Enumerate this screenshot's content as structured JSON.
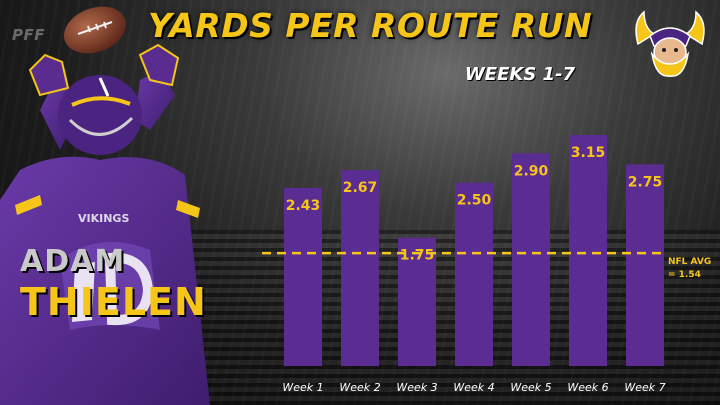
{
  "branding": {
    "pff": "PFF"
  },
  "title": "YARDS PER ROUTE RUN",
  "subtitle": "WEEKS 1-7",
  "player": {
    "first_name": "ADAM",
    "last_name": "THIELEN",
    "jersey_text": "VIKINGS"
  },
  "avg": {
    "line1": "NFL AVG",
    "line2": "= 1.54",
    "value": 1.54
  },
  "colors": {
    "bar": "#5b2c91",
    "accent": "#f5c518",
    "label": "#f5c518",
    "tick": "#ffffff"
  },
  "chart_data": {
    "type": "bar",
    "title": "YARDS PER ROUTE RUN",
    "subtitle": "WEEKS 1-7",
    "categories": [
      "Week 1",
      "Week 2",
      "Week 3",
      "Week 4",
      "Week 5",
      "Week 6",
      "Week 7"
    ],
    "values": [
      2.43,
      2.67,
      1.75,
      2.5,
      2.9,
      3.15,
      2.75
    ],
    "value_labels": [
      "2.43",
      "2.67",
      "1.75",
      "2.50",
      "2.90",
      "3.15",
      "2.75"
    ],
    "reference_line": {
      "label": "NFL AVG = 1.54",
      "value": 1.54
    },
    "ylim": [
      0,
      3.3
    ],
    "grid": false
  }
}
